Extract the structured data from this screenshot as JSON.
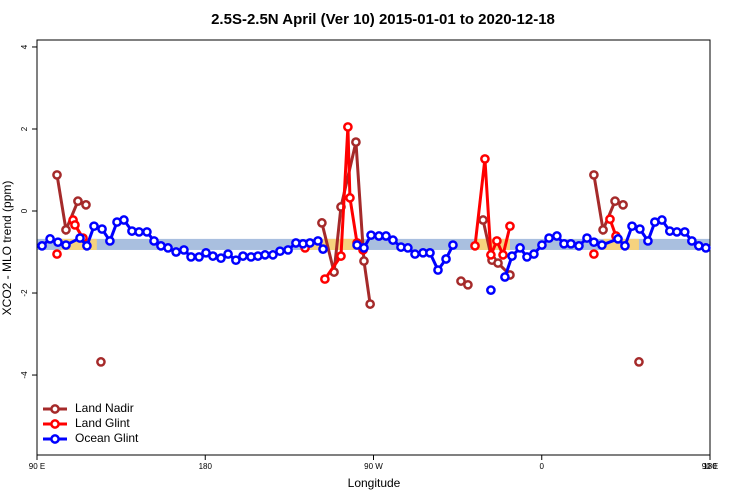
{
  "chart_data": {
    "type": "line",
    "title": "2.5S-2.5N April (Ver 10)   2015-01-01 to 2020-12-18",
    "x_label": "Longitude",
    "y_label": "XCO2 - MLO trend (ppm)",
    "xlim": [
      90,
      450
    ],
    "ylim": [
      -5.95,
      4.17
    ],
    "xticks": [
      {
        "value": 90,
        "label": "90 E"
      },
      180,
      {
        "value": 270,
        "label": "90 W"
      },
      {
        "value": 360,
        "label": "0"
      },
      {
        "value": 450,
        "label": "90 E"
      },
      {
        "value": 540,
        "label": "180"
      }
    ],
    "yticks": [
      4,
      2,
      0,
      -2,
      -4
    ],
    "legend": "bottom-left",
    "band": {
      "range": [
        -0.95,
        -0.68
      ],
      "color": "#a9bfdf"
    },
    "highlights": {
      "color": "#f6d27e",
      "ranges": [
        [
          103,
          122
        ],
        [
          236,
          265
        ],
        [
          324,
          343
        ],
        [
          393,
          412
        ]
      ]
    },
    "series": [
      {
        "name": "Land Nadir",
        "color": "#a52a2a",
        "x": [
          100.7,
          105.5,
          111.9,
          116.2,
          null,
          124.2,
          null,
          242.4,
          248.9,
          252.6,
          260.6,
          264.9,
          268.2,
          null,
          316.8,
          320.5,
          null,
          328.6,
          333.4,
          336.6,
          343.0,
          null,
          387.9,
          392.8,
          399.2,
          403.5,
          null,
          412.0
        ],
        "values": [
          0.88,
          -0.46,
          0.24,
          0.15,
          null,
          -3.68,
          null,
          -0.29,
          -1.49,
          0.1,
          1.68,
          -1.22,
          -2.27,
          null,
          -1.71,
          -1.8,
          null,
          -0.22,
          -1.2,
          -1.27,
          -1.56,
          null,
          0.88,
          -0.46,
          0.24,
          0.15,
          null,
          -3.68
        ]
      },
      {
        "name": "Land Glint",
        "color": "#ff0000",
        "x": [
          100.7,
          null,
          109.3,
          110.3,
          114.6,
          null,
          233.4,
          null,
          244.0,
          252.6,
          256.3,
          257.4,
          261.2,
          264.4,
          null,
          324.3,
          329.6,
          332.8,
          336.0,
          339.3,
          343.0,
          null,
          387.9,
          null,
          396.5,
          399.7
        ],
        "values": [
          -1.05,
          null,
          -0.22,
          -0.34,
          -0.66,
          null,
          -0.9,
          null,
          -1.66,
          -1.1,
          2.05,
          0.32,
          -0.78,
          -0.95,
          null,
          -0.85,
          1.27,
          -1.07,
          -0.73,
          -1.07,
          -0.37,
          null,
          -1.05,
          null,
          -0.2,
          -0.61
        ]
      },
      {
        "name": "Ocean Glint",
        "color": "#0000ff",
        "x": [
          92.7,
          97.0,
          101.2,
          105.5,
          113.0,
          116.7,
          120.5,
          124.8,
          129.0,
          132.8,
          136.5,
          140.8,
          144.6,
          148.8,
          152.6,
          156.3,
          160.1,
          164.4,
          168.6,
          172.4,
          176.7,
          180.4,
          184.1,
          188.4,
          192.2,
          196.4,
          200.2,
          204.5,
          208.2,
          212.0,
          216.2,
          220.0,
          224.3,
          228.5,
          232.3,
          236.0,
          240.3,
          243.0,
          null,
          261.2,
          264.9,
          268.7,
          272.9,
          276.7,
          280.4,
          284.7,
          288.4,
          292.2,
          296.5,
          300.2,
          304.5,
          308.8,
          312.5,
          null,
          332.8,
          null,
          340.3,
          344.1,
          348.4,
          352.1,
          355.8,
          360.1,
          363.9,
          368.1,
          371.9,
          375.6,
          379.9,
          384.2,
          387.9,
          392.2,
          400.8,
          404.5,
          408.3,
          412.5,
          416.8,
          420.5,
          424.3,
          428.5,
          432.3,
          436.5,
          440.3,
          444.0,
          447.8
        ],
        "values": [
          -0.85,
          -0.68,
          -0.76,
          -0.83,
          -0.66,
          -0.85,
          -0.37,
          -0.44,
          -0.73,
          -0.27,
          -0.22,
          -0.49,
          -0.51,
          -0.51,
          -0.73,
          -0.85,
          -0.9,
          -1.0,
          -0.95,
          -1.12,
          -1.12,
          -1.02,
          -1.1,
          -1.15,
          -1.05,
          -1.2,
          -1.1,
          -1.12,
          -1.1,
          -1.07,
          -1.07,
          -0.98,
          -0.95,
          -0.78,
          -0.8,
          -0.78,
          -0.73,
          -0.93,
          null,
          -0.83,
          -0.9,
          -0.59,
          -0.61,
          -0.61,
          -0.71,
          -0.88,
          -0.9,
          -1.05,
          -1.02,
          -1.02,
          -1.44,
          -1.17,
          -0.83,
          null,
          -1.93,
          null,
          -1.61,
          -1.1,
          -0.9,
          -1.12,
          -1.05,
          -0.83,
          -0.66,
          -0.61,
          -0.8,
          -0.8,
          -0.85,
          -0.66,
          -0.76,
          -0.83,
          -0.68,
          -0.85,
          -0.37,
          -0.44,
          -0.73,
          -0.27,
          -0.22,
          -0.49,
          -0.51,
          -0.51,
          -0.73,
          -0.85,
          -0.9
        ]
      }
    ]
  }
}
